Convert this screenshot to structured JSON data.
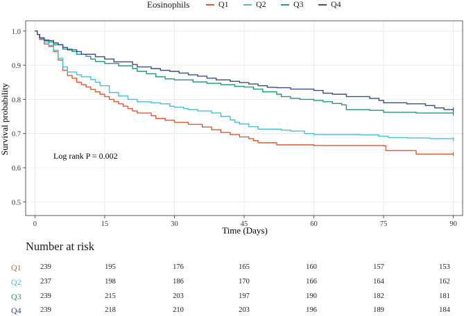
{
  "chart_data": {
    "type": "line",
    "subtype": "kaplan-meier",
    "legend_title": "Eosinophils",
    "xlabel": "Time (Days)",
    "ylabel": "Survival probability",
    "xlim": [
      -2,
      92
    ],
    "ylim": [
      0.46,
      1.03
    ],
    "x_ticks": [
      "0",
      "15",
      "30",
      "45",
      "60",
      "75",
      "90"
    ],
    "y_ticks": [
      "0.5",
      "0.6",
      "0.7",
      "0.8",
      "0.9",
      "1.0"
    ],
    "annotation": "Log rank P = 0.002",
    "series": [
      {
        "name": "Q1",
        "color": "#e4572e",
        "points": [
          [
            0,
            1.0
          ],
          [
            0.5,
            0.99
          ],
          [
            1,
            0.975
          ],
          [
            2,
            0.962
          ],
          [
            3,
            0.955
          ],
          [
            4,
            0.94
          ],
          [
            5,
            0.915
          ],
          [
            6,
            0.885
          ],
          [
            7,
            0.87
          ],
          [
            8,
            0.862
          ],
          [
            9,
            0.85
          ],
          [
            10,
            0.843
          ],
          [
            11,
            0.836
          ],
          [
            12,
            0.829
          ],
          [
            13,
            0.822
          ],
          [
            14,
            0.815
          ],
          [
            15,
            0.808
          ],
          [
            16,
            0.8
          ],
          [
            17,
            0.793
          ],
          [
            18,
            0.787
          ],
          [
            19,
            0.78
          ],
          [
            20,
            0.773
          ],
          [
            21,
            0.766
          ],
          [
            22,
            0.76
          ],
          [
            25,
            0.752
          ],
          [
            26,
            0.744
          ],
          [
            28,
            0.739
          ],
          [
            30,
            0.733
          ],
          [
            33,
            0.727
          ],
          [
            36,
            0.719
          ],
          [
            38,
            0.711
          ],
          [
            40,
            0.703
          ],
          [
            42,
            0.697
          ],
          [
            44,
            0.69
          ],
          [
            46,
            0.685
          ],
          [
            47,
            0.679
          ],
          [
            48,
            0.673
          ],
          [
            52,
            0.667
          ],
          [
            59,
            0.667
          ],
          [
            60,
            0.665
          ],
          [
            63,
            0.665
          ],
          [
            75,
            0.664
          ],
          [
            75.5,
            0.65
          ],
          [
            82,
            0.64
          ],
          [
            90,
            0.64
          ]
        ]
      },
      {
        "name": "Q2",
        "color": "#4bbcd6",
        "points": [
          [
            0,
            1.0
          ],
          [
            0.5,
            0.99
          ],
          [
            1,
            0.978
          ],
          [
            2,
            0.968
          ],
          [
            3,
            0.958
          ],
          [
            4,
            0.944
          ],
          [
            5,
            0.92
          ],
          [
            6,
            0.895
          ],
          [
            7,
            0.88
          ],
          [
            9,
            0.872
          ],
          [
            10,
            0.866
          ],
          [
            12,
            0.858
          ],
          [
            13,
            0.85
          ],
          [
            14,
            0.84
          ],
          [
            16,
            0.82
          ],
          [
            18,
            0.81
          ],
          [
            20,
            0.8
          ],
          [
            22,
            0.793
          ],
          [
            25,
            0.79
          ],
          [
            27,
            0.787
          ],
          [
            29,
            0.78
          ],
          [
            30,
            0.777
          ],
          [
            32,
            0.773
          ],
          [
            33,
            0.77
          ],
          [
            35,
            0.766
          ],
          [
            38,
            0.76
          ],
          [
            40,
            0.75
          ],
          [
            42,
            0.74
          ],
          [
            43,
            0.733
          ],
          [
            44,
            0.728
          ],
          [
            46,
            0.72
          ],
          [
            48,
            0.713
          ],
          [
            53,
            0.71
          ],
          [
            55,
            0.707
          ],
          [
            58,
            0.7
          ],
          [
            60,
            0.697
          ],
          [
            70,
            0.696
          ],
          [
            74,
            0.692
          ],
          [
            76,
            0.688
          ],
          [
            80,
            0.687
          ],
          [
            84,
            0.687
          ],
          [
            85,
            0.685
          ],
          [
            90,
            0.683
          ]
        ]
      },
      {
        "name": "Q3",
        "color": "#1a9a78",
        "points": [
          [
            0,
            1.0
          ],
          [
            0.5,
            0.99
          ],
          [
            1,
            0.98
          ],
          [
            2,
            0.974
          ],
          [
            3,
            0.968
          ],
          [
            4,
            0.96
          ],
          [
            6,
            0.947
          ],
          [
            8,
            0.94
          ],
          [
            9,
            0.932
          ],
          [
            11,
            0.926
          ],
          [
            12,
            0.918
          ],
          [
            13,
            0.911
          ],
          [
            15,
            0.905
          ],
          [
            18,
            0.898
          ],
          [
            21,
            0.89
          ],
          [
            22,
            0.882
          ],
          [
            24,
            0.875
          ],
          [
            26,
            0.866
          ],
          [
            28,
            0.86
          ],
          [
            30,
            0.857
          ],
          [
            34,
            0.851
          ],
          [
            37,
            0.847
          ],
          [
            40,
            0.843
          ],
          [
            43,
            0.838
          ],
          [
            45,
            0.836
          ],
          [
            47,
            0.83
          ],
          [
            49,
            0.822
          ],
          [
            52,
            0.815
          ],
          [
            53,
            0.808
          ],
          [
            55,
            0.803
          ],
          [
            57,
            0.8
          ],
          [
            60,
            0.797
          ],
          [
            62,
            0.793
          ],
          [
            64,
            0.788
          ],
          [
            66,
            0.784
          ],
          [
            67,
            0.77
          ],
          [
            72,
            0.768
          ],
          [
            75,
            0.762
          ],
          [
            82,
            0.76
          ],
          [
            90,
            0.758
          ]
        ]
      },
      {
        "name": "Q4",
        "color": "#3c4a84",
        "points": [
          [
            0,
            1.0
          ],
          [
            0.5,
            0.99
          ],
          [
            1,
            0.98
          ],
          [
            2,
            0.972
          ],
          [
            4,
            0.965
          ],
          [
            5,
            0.96
          ],
          [
            6,
            0.952
          ],
          [
            7,
            0.945
          ],
          [
            9,
            0.94
          ],
          [
            10,
            0.932
          ],
          [
            13,
            0.925
          ],
          [
            15,
            0.918
          ],
          [
            17,
            0.91
          ],
          [
            21,
            0.902
          ],
          [
            22,
            0.895
          ],
          [
            25,
            0.89
          ],
          [
            27,
            0.885
          ],
          [
            29,
            0.882
          ],
          [
            31,
            0.877
          ],
          [
            33,
            0.872
          ],
          [
            35,
            0.868
          ],
          [
            37,
            0.862
          ],
          [
            39,
            0.857
          ],
          [
            42,
            0.853
          ],
          [
            44,
            0.849
          ],
          [
            46,
            0.845
          ],
          [
            48,
            0.84
          ],
          [
            50,
            0.835
          ],
          [
            52,
            0.834
          ],
          [
            55,
            0.83
          ],
          [
            57,
            0.83
          ],
          [
            60,
            0.826
          ],
          [
            62,
            0.818
          ],
          [
            64,
            0.815
          ],
          [
            67,
            0.808
          ],
          [
            72,
            0.803
          ],
          [
            74,
            0.797
          ],
          [
            75,
            0.79
          ],
          [
            80,
            0.787
          ],
          [
            84,
            0.782
          ],
          [
            86,
            0.775
          ],
          [
            88,
            0.77
          ],
          [
            90,
            0.77
          ]
        ]
      }
    ]
  },
  "risk_table": {
    "title": "Number at risk",
    "rows": [
      {
        "label": "Q1",
        "color": "#e4572e",
        "values": [
          "239",
          "195",
          "176",
          "165",
          "160",
          "157",
          "153"
        ]
      },
      {
        "label": "Q2",
        "color": "#4bbcd6",
        "values": [
          "237",
          "198",
          "186",
          "170",
          "166",
          "164",
          "162"
        ]
      },
      {
        "label": "Q3",
        "color": "#1a9a78",
        "values": [
          "239",
          "215",
          "203",
          "197",
          "190",
          "182",
          "181"
        ]
      },
      {
        "label": "Q4",
        "color": "#3c4a84",
        "values": [
          "239",
          "218",
          "210",
          "203",
          "196",
          "189",
          "184"
        ]
      }
    ]
  }
}
